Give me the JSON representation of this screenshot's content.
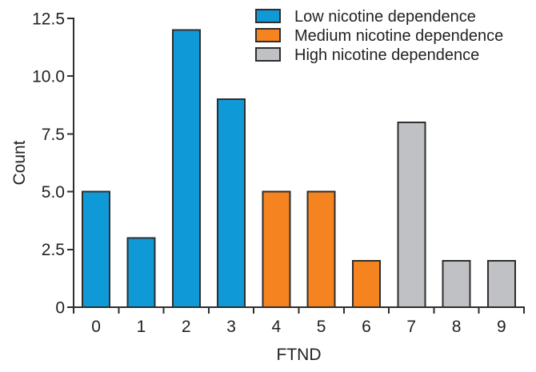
{
  "figure": {
    "background": "#ffffff"
  },
  "chart_data": {
    "type": "bar",
    "title": "",
    "xlabel": "FTND",
    "ylabel": "Count",
    "categories": [
      "0",
      "1",
      "2",
      "3",
      "4",
      "5",
      "6",
      "7",
      "8",
      "9"
    ],
    "values": [
      5,
      3,
      12,
      9,
      5,
      5,
      2,
      8,
      2,
      2
    ],
    "groups": [
      "low",
      "low",
      "low",
      "low",
      "medium",
      "medium",
      "medium",
      "high",
      "high",
      "high"
    ],
    "ylim": [
      0,
      12.5
    ],
    "yticks": [
      0,
      2.5,
      5,
      7.5,
      10,
      12.5
    ],
    "ytick_labels": [
      "0",
      "2.5",
      "5.0",
      "7.5",
      "10.0",
      "12.5"
    ],
    "grid": false,
    "legend_position": "top-right",
    "legend": [
      {
        "key": "low",
        "label": "Low nicotine dependence",
        "color": "#0f9ad7"
      },
      {
        "key": "medium",
        "label": "Medium nicotine dependence",
        "color": "#f5831f"
      },
      {
        "key": "high",
        "label": "High nicotine dependence",
        "color": "#bfc1c4"
      }
    ],
    "bar_border_color": "#2e2e2e",
    "axis_color": "#2e2e2e",
    "text_color": "#231f20"
  }
}
